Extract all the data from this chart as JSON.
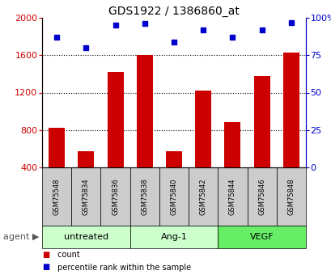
{
  "title": "GDS1922 / 1386860_at",
  "samples": [
    "GSM75548",
    "GSM75834",
    "GSM75836",
    "GSM75838",
    "GSM75840",
    "GSM75842",
    "GSM75844",
    "GSM75846",
    "GSM75848"
  ],
  "counts": [
    820,
    575,
    1420,
    1600,
    570,
    1225,
    885,
    1380,
    1625
  ],
  "percentiles": [
    87,
    80,
    95,
    96,
    84,
    92,
    87,
    92,
    97
  ],
  "groups": [
    {
      "label": "untreated",
      "start": 0,
      "end": 3
    },
    {
      "label": "Ang-1",
      "start": 3,
      "end": 6
    },
    {
      "label": "VEGF",
      "start": 6,
      "end": 9
    }
  ],
  "group_colors": [
    "#ccffcc",
    "#ccffcc",
    "#66ee66"
  ],
  "ylim_left": [
    400,
    2000
  ],
  "ylim_right": [
    0,
    100
  ],
  "yticks_left": [
    400,
    800,
    1200,
    1600,
    2000
  ],
  "yticks_right": [
    0,
    25,
    50,
    75,
    100
  ],
  "ytick_labels_right": [
    "0",
    "25",
    "50",
    "75",
    "100%"
  ],
  "bar_color": "#cc0000",
  "dot_color": "#0000cc",
  "bar_bottom": 400,
  "legend_count_color": "#cc0000",
  "legend_pct_color": "#0000cc"
}
